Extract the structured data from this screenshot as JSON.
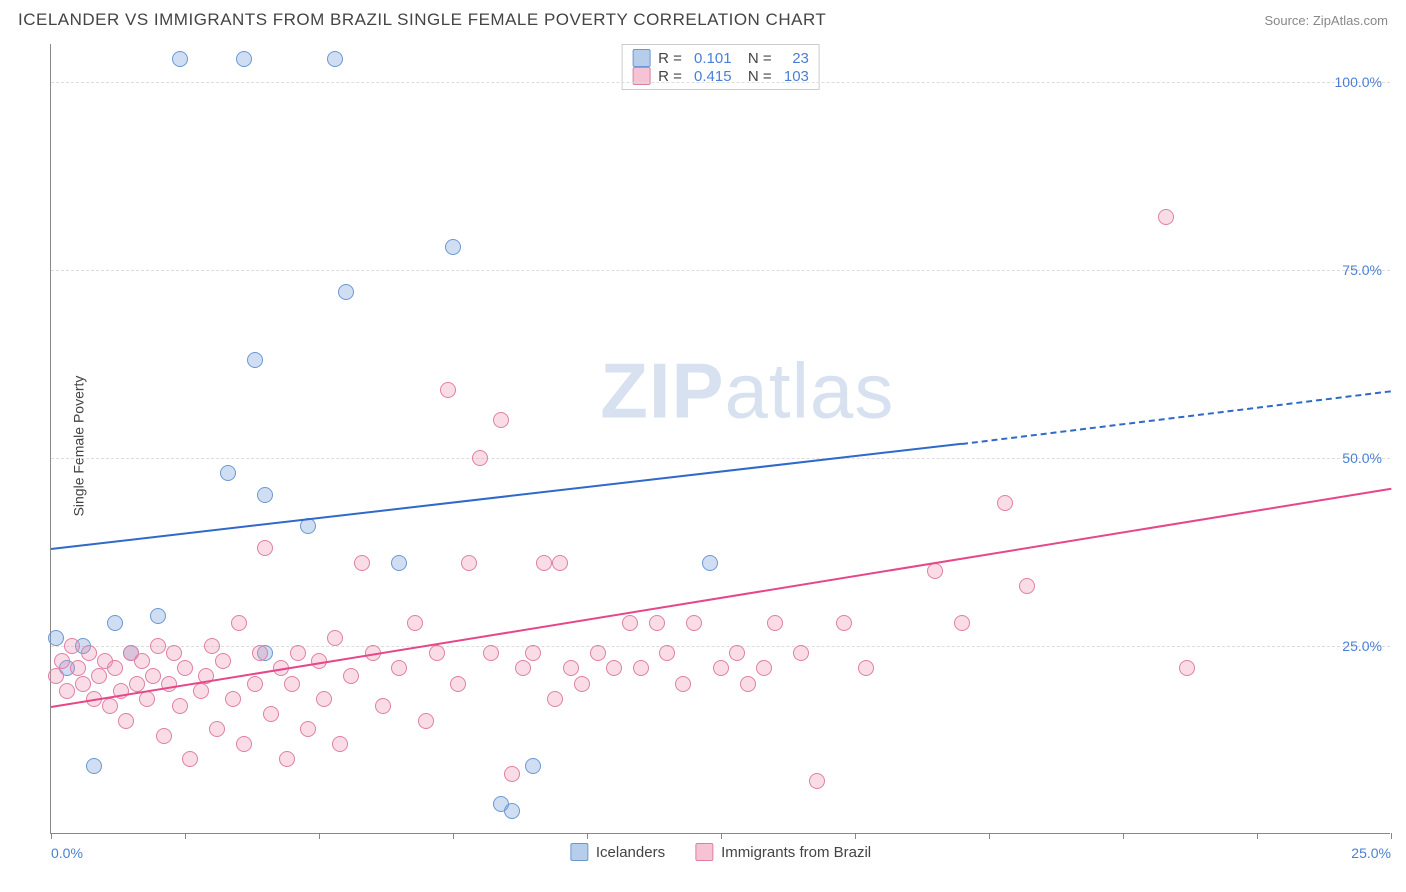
{
  "header": {
    "title": "ICELANDER VS IMMIGRANTS FROM BRAZIL SINGLE FEMALE POVERTY CORRELATION CHART",
    "source": "Source: ZipAtlas.com"
  },
  "chart": {
    "type": "scatter",
    "ylabel": "Single Female Poverty",
    "xlim": [
      0,
      25
    ],
    "ylim": [
      0,
      105
    ],
    "yticks": [
      25,
      50,
      75,
      100
    ],
    "ytick_labels": [
      "25.0%",
      "50.0%",
      "75.0%",
      "100.0%"
    ],
    "xticks": [
      0,
      2.5,
      5,
      7.5,
      10,
      12.5,
      15,
      17.5,
      20,
      22.5,
      25
    ],
    "xtick_labels": {
      "0": "0.0%",
      "25": "25.0%"
    },
    "background_color": "#ffffff",
    "grid_color": "#dddddd",
    "axis_color": "#888888",
    "tick_label_color": "#4a7fd6",
    "point_radius": 8,
    "series": [
      {
        "name": "Icelanders",
        "fill": "rgba(120,160,220,0.35)",
        "stroke": "#6b98d4",
        "legend_swatch_fill": "#b6cdec",
        "legend_swatch_stroke": "#6b98d4",
        "R": "0.101",
        "N": "23",
        "trend": {
          "x1": 0,
          "y1": 38,
          "x2": 17,
          "y2": 52,
          "solid_color": "#2f69c9",
          "dash_to_x": 25,
          "dash_to_y": 59
        },
        "points": [
          [
            0.1,
            26
          ],
          [
            0.3,
            22
          ],
          [
            0.6,
            25
          ],
          [
            0.8,
            9
          ],
          [
            1.2,
            28
          ],
          [
            1.5,
            24
          ],
          [
            2.0,
            29
          ],
          [
            2.4,
            103
          ],
          [
            3.3,
            48
          ],
          [
            3.6,
            103
          ],
          [
            3.8,
            63
          ],
          [
            4.0,
            45
          ],
          [
            4.0,
            24
          ],
          [
            4.8,
            41
          ],
          [
            5.3,
            103
          ],
          [
            5.5,
            72
          ],
          [
            6.5,
            36
          ],
          [
            7.5,
            78
          ],
          [
            8.4,
            4
          ],
          [
            8.6,
            3
          ],
          [
            9.0,
            9
          ],
          [
            12.3,
            36
          ]
        ]
      },
      {
        "name": "Immigrants from Brazil",
        "fill": "rgba(235,140,170,0.30)",
        "stroke": "#e07fa4",
        "legend_swatch_fill": "#f6c3d4",
        "legend_swatch_stroke": "#e07fa4",
        "R": "0.415",
        "N": "103",
        "trend": {
          "x1": 0,
          "y1": 17,
          "x2": 25,
          "y2": 46,
          "solid_color": "#e5478a"
        },
        "points": [
          [
            0.1,
            21
          ],
          [
            0.2,
            23
          ],
          [
            0.3,
            19
          ],
          [
            0.4,
            25
          ],
          [
            0.5,
            22
          ],
          [
            0.6,
            20
          ],
          [
            0.7,
            24
          ],
          [
            0.8,
            18
          ],
          [
            0.9,
            21
          ],
          [
            1.0,
            23
          ],
          [
            1.1,
            17
          ],
          [
            1.2,
            22
          ],
          [
            1.3,
            19
          ],
          [
            1.4,
            15
          ],
          [
            1.5,
            24
          ],
          [
            1.6,
            20
          ],
          [
            1.7,
            23
          ],
          [
            1.8,
            18
          ],
          [
            1.9,
            21
          ],
          [
            2.0,
            25
          ],
          [
            2.1,
            13
          ],
          [
            2.2,
            20
          ],
          [
            2.3,
            24
          ],
          [
            2.4,
            17
          ],
          [
            2.5,
            22
          ],
          [
            2.6,
            10
          ],
          [
            2.8,
            19
          ],
          [
            2.9,
            21
          ],
          [
            3.0,
            25
          ],
          [
            3.1,
            14
          ],
          [
            3.2,
            23
          ],
          [
            3.4,
            18
          ],
          [
            3.5,
            28
          ],
          [
            3.6,
            12
          ],
          [
            3.8,
            20
          ],
          [
            3.9,
            24
          ],
          [
            4.0,
            38
          ],
          [
            4.1,
            16
          ],
          [
            4.3,
            22
          ],
          [
            4.4,
            10
          ],
          [
            4.5,
            20
          ],
          [
            4.6,
            24
          ],
          [
            4.8,
            14
          ],
          [
            5.0,
            23
          ],
          [
            5.1,
            18
          ],
          [
            5.3,
            26
          ],
          [
            5.4,
            12
          ],
          [
            5.6,
            21
          ],
          [
            5.8,
            36
          ],
          [
            6.0,
            24
          ],
          [
            6.2,
            17
          ],
          [
            6.5,
            22
          ],
          [
            6.8,
            28
          ],
          [
            7.0,
            15
          ],
          [
            7.2,
            24
          ],
          [
            7.4,
            59
          ],
          [
            7.6,
            20
          ],
          [
            7.8,
            36
          ],
          [
            8.0,
            50
          ],
          [
            8.2,
            24
          ],
          [
            8.4,
            55
          ],
          [
            8.6,
            8
          ],
          [
            8.8,
            22
          ],
          [
            9.0,
            24
          ],
          [
            9.2,
            36
          ],
          [
            9.4,
            18
          ],
          [
            9.5,
            36
          ],
          [
            9.7,
            22
          ],
          [
            9.9,
            20
          ],
          [
            10.2,
            24
          ],
          [
            10.5,
            22
          ],
          [
            10.8,
            28
          ],
          [
            11.0,
            22
          ],
          [
            11.3,
            28
          ],
          [
            11.5,
            24
          ],
          [
            11.8,
            20
          ],
          [
            12.0,
            28
          ],
          [
            12.5,
            22
          ],
          [
            12.8,
            24
          ],
          [
            13.0,
            20
          ],
          [
            13.3,
            22
          ],
          [
            13.5,
            28
          ],
          [
            14.0,
            24
          ],
          [
            14.3,
            7
          ],
          [
            14.8,
            28
          ],
          [
            15.2,
            22
          ],
          [
            16.5,
            35
          ],
          [
            17.0,
            28
          ],
          [
            17.8,
            44
          ],
          [
            18.2,
            33
          ],
          [
            20.8,
            82
          ],
          [
            21.2,
            22
          ]
        ]
      }
    ],
    "legend_bottom": [
      {
        "label": "Icelanders",
        "series_index": 0
      },
      {
        "label": "Immigrants from Brazil",
        "series_index": 1
      }
    ]
  },
  "watermark": {
    "prefix": "ZIP",
    "suffix": "atlas"
  }
}
